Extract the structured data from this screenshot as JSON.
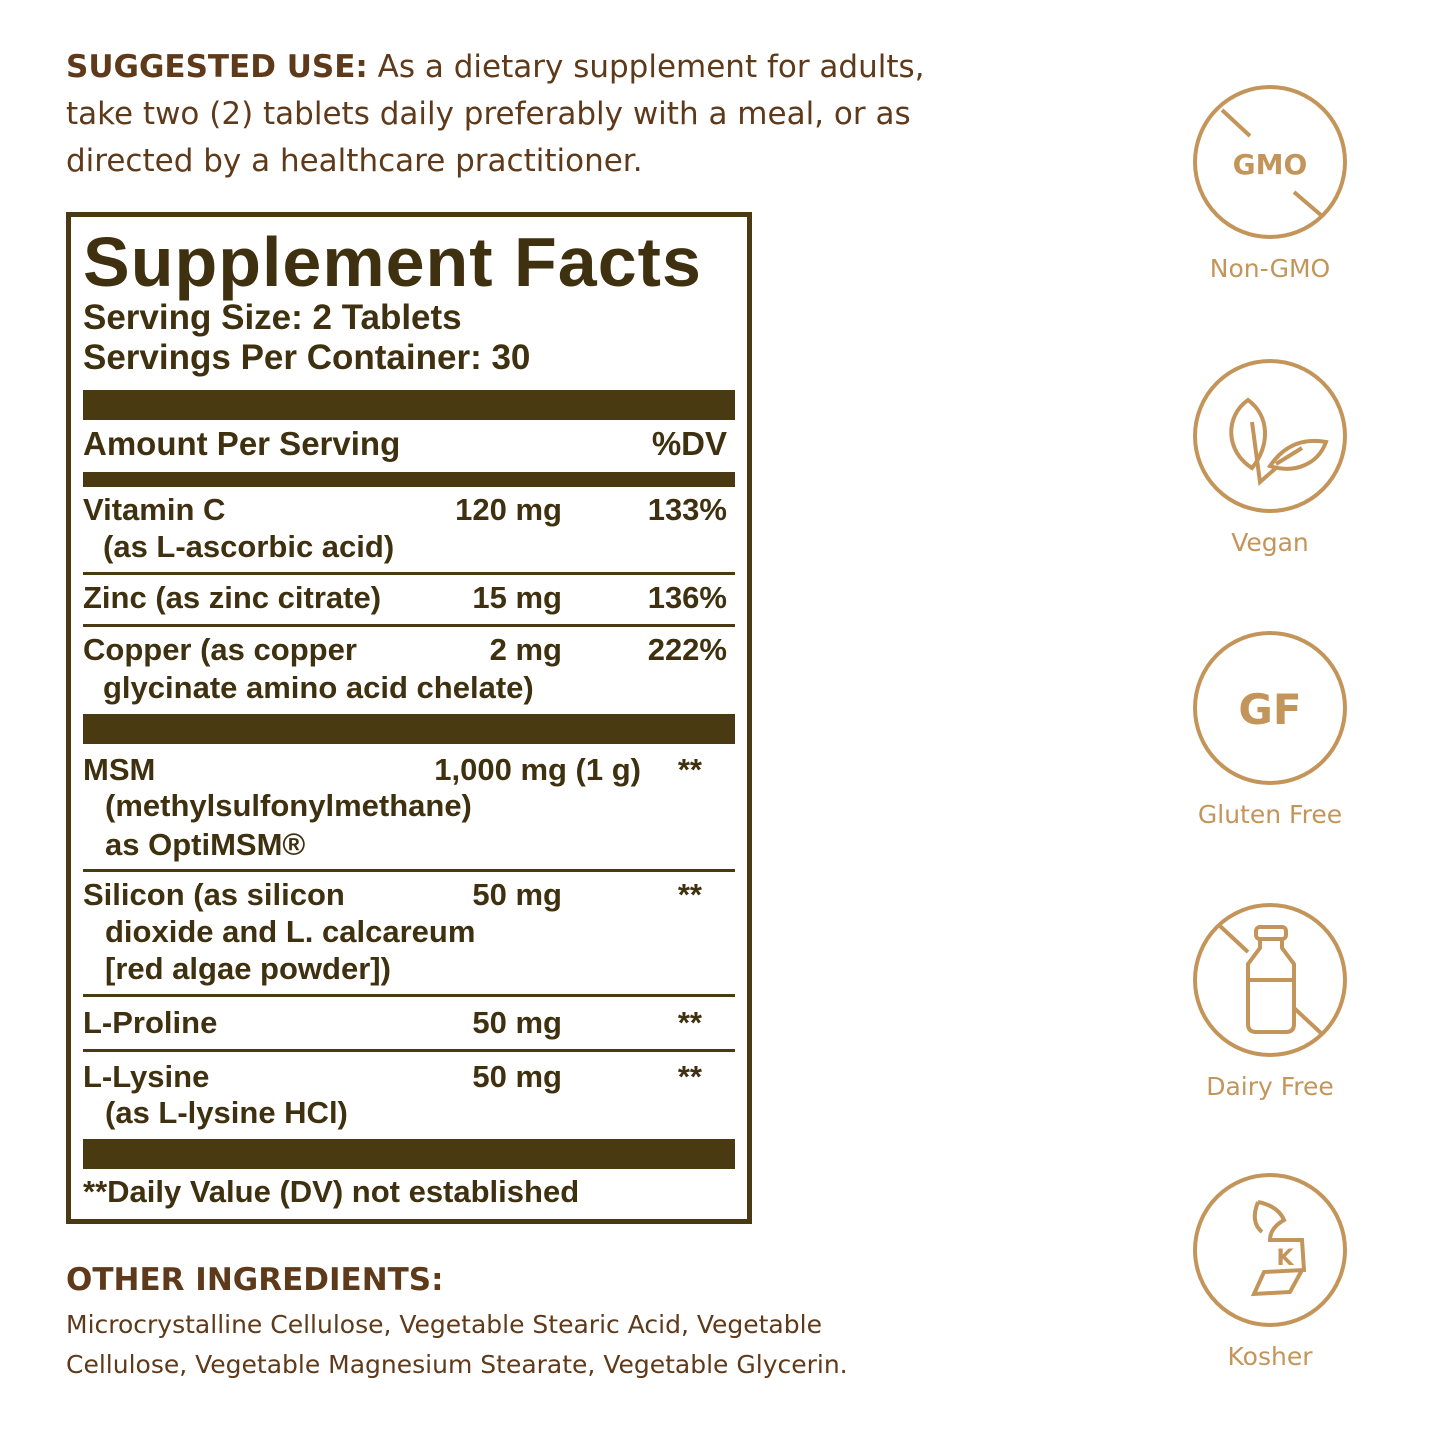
{
  "suggested_use": {
    "heading": "SUGGESTED USE:",
    "lines": [
      "As a dietary supplement for adults,",
      "take two (2) tablets daily preferably with a meal, or as",
      "directed by a healthcare practitioner."
    ]
  },
  "facts": {
    "title": "Supplement Facts",
    "serving_size": "Serving Size: 2 Tablets",
    "servings_per_container": "Servings Per Container: 30",
    "header_amount": "Amount Per Serving",
    "header_dv": "%DV",
    "rows": [
      {
        "lines": [
          "Vitamin C",
          "(as L-ascorbic acid)"
        ],
        "amount": "120 mg",
        "dv": "133%"
      },
      {
        "lines": [
          "Zinc (as zinc citrate)"
        ],
        "amount": "15 mg",
        "dv": "136%"
      },
      {
        "lines": [
          "Copper (as copper",
          "glycinate amino acid chelate)"
        ],
        "amount": "2 mg",
        "dv": "222%"
      },
      {
        "lines": [
          "MSM",
          "(methylsulfonylmethane)",
          "as OptiMSM®"
        ],
        "amount": "1,000 mg (1 g)",
        "dv": "**"
      },
      {
        "lines": [
          "Silicon (as silicon",
          "dioxide and L. calcareum",
          "[red algae powder])"
        ],
        "amount": "50 mg",
        "dv": "**"
      },
      {
        "lines": [
          "L-Proline"
        ],
        "amount": "50 mg",
        "dv": "**"
      },
      {
        "lines": [
          "L-Lysine",
          "(as L-lysine HCl)"
        ],
        "amount": "50 mg",
        "dv": "**"
      }
    ],
    "footnote": "**Daily Value (DV) not established"
  },
  "other_ingredients": {
    "heading": "OTHER INGREDIENTS:",
    "lines": [
      "Microcrystalline Cellulose, Vegetable Stearic Acid, Vegetable",
      "Cellulose, Vegetable Magnesium Stearate, Vegetable Glycerin."
    ]
  },
  "badges": [
    {
      "icon": "no-gmo-icon",
      "text": "GMO",
      "label": "Non-GMO"
    },
    {
      "icon": "leaf-icon",
      "label": "Vegan"
    },
    {
      "icon": "gluten-free-icon",
      "text": "GF",
      "label": "Gluten Free"
    },
    {
      "icon": "no-milk-bottle-icon",
      "label": "Dairy Free"
    },
    {
      "icon": "kosher-icon",
      "text": "K",
      "label": "Kosher"
    }
  ],
  "colors": {
    "heading_brown": "#5e3a1a",
    "label_dark": "#4a3a12",
    "badge_gold": "#c4955a"
  }
}
